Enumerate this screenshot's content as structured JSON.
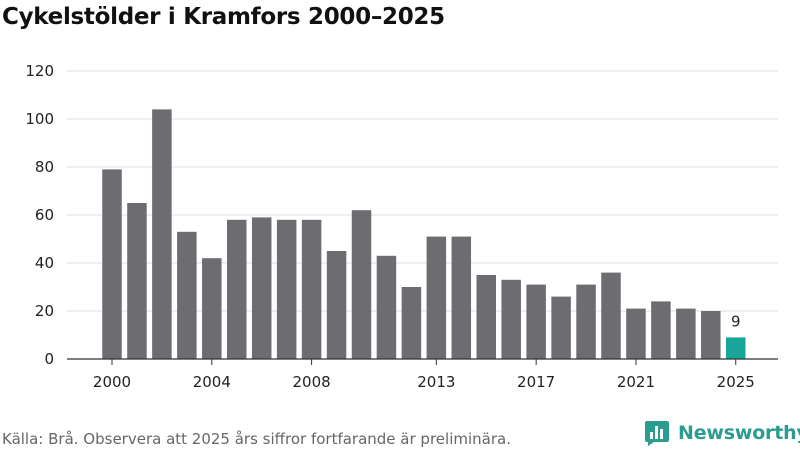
{
  "title": "Cykelstölder i Kramfors 2000–2025",
  "source": "Källa: Brå. Observera att 2025 års siffror fortfarande är preliminära.",
  "brand": {
    "name": "Newsworthy",
    "logo_icon": "bar-chart-logo-icon",
    "color": "#2a9d8f"
  },
  "colors": {
    "bar": "#6d6c71",
    "highlight": "#1aa59a",
    "grid": "#dddddd",
    "axis": "#333333"
  },
  "chart_data": {
    "type": "bar",
    "title": "Cykelstölder i Kramfors 2000–2025",
    "xlabel": "",
    "ylabel": "",
    "categories": [
      2000,
      2001,
      2002,
      2003,
      2004,
      2005,
      2006,
      2007,
      2008,
      2009,
      2010,
      2011,
      2012,
      2013,
      2014,
      2015,
      2016,
      2017,
      2018,
      2019,
      2020,
      2021,
      2022,
      2023,
      2024,
      2025
    ],
    "values": [
      79,
      65,
      104,
      53,
      42,
      58,
      59,
      58,
      58,
      45,
      62,
      43,
      30,
      51,
      51,
      35,
      33,
      31,
      26,
      31,
      36,
      21,
      24,
      21,
      20,
      9
    ],
    "highlight_category": 2025,
    "annotations": [
      {
        "x": 2025,
        "text": "9"
      }
    ],
    "x_tick_labels": [
      "2000",
      "2004",
      "2008",
      "2013",
      "2017",
      "2021",
      "2025"
    ],
    "ylim": [
      0,
      120
    ],
    "y_ticks": [
      0,
      20,
      40,
      60,
      80,
      100,
      120
    ],
    "grid": true,
    "legend": "none"
  }
}
